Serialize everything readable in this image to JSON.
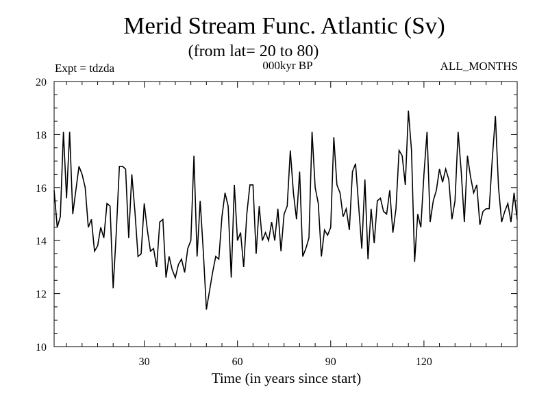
{
  "chart_data": {
    "type": "line",
    "title": "Merid Stream Func. Atlantic (Sv)",
    "subtitle": "(from lat= 20 to 80)",
    "header_left": "Expt = tdzda",
    "header_center": "000kyr BP",
    "header_right": "ALL_MONTHS",
    "xlabel": "Time (in years since start)",
    "ylabel": "",
    "xlim": [
      1,
      150
    ],
    "ylim": [
      10,
      20
    ],
    "xticks": [
      30,
      60,
      90,
      120
    ],
    "yticks": [
      10,
      12,
      14,
      16,
      18,
      20
    ],
    "grid": false,
    "series": [
      {
        "name": "Merid Stream Func. Atlantic",
        "color": "#000000",
        "x": [
          1,
          2,
          3,
          4,
          5,
          6,
          7,
          8,
          9,
          10,
          11,
          12,
          13,
          14,
          15,
          16,
          17,
          18,
          19,
          20,
          21,
          22,
          23,
          24,
          25,
          26,
          27,
          28,
          29,
          30,
          31,
          32,
          33,
          34,
          35,
          36,
          37,
          38,
          39,
          40,
          41,
          42,
          43,
          44,
          45,
          46,
          47,
          48,
          49,
          50,
          51,
          52,
          53,
          54,
          55,
          56,
          57,
          58,
          59,
          60,
          61,
          62,
          63,
          64,
          65,
          66,
          67,
          68,
          69,
          70,
          71,
          72,
          73,
          74,
          75,
          76,
          77,
          78,
          79,
          80,
          81,
          82,
          83,
          84,
          85,
          86,
          87,
          88,
          89,
          90,
          91,
          92,
          93,
          94,
          95,
          96,
          97,
          98,
          99,
          100,
          101,
          102,
          103,
          104,
          105,
          106,
          107,
          108,
          109,
          110,
          111,
          112,
          113,
          114,
          115,
          116,
          117,
          118,
          119,
          120,
          121,
          122,
          123,
          124,
          125,
          126,
          127,
          128,
          129,
          130,
          131,
          132,
          133,
          134,
          135,
          136,
          137,
          138,
          139,
          140,
          141,
          142,
          143,
          144,
          145,
          146,
          147,
          148,
          149,
          150
        ],
        "values": [
          15.9,
          14.5,
          14.9,
          18.1,
          15.6,
          18.1,
          15.0,
          15.9,
          16.8,
          16.5,
          16.0,
          14.5,
          14.8,
          13.6,
          13.8,
          14.5,
          14.1,
          15.4,
          15.3,
          12.2,
          14.3,
          16.8,
          16.8,
          16.7,
          14.1,
          16.5,
          15.1,
          13.4,
          13.5,
          15.4,
          14.4,
          13.6,
          13.7,
          13.0,
          14.7,
          14.8,
          12.6,
          13.4,
          12.9,
          12.6,
          13.1,
          13.3,
          12.8,
          13.7,
          14.0,
          17.2,
          13.4,
          15.5,
          13.6,
          11.4,
          12.1,
          12.8,
          13.4,
          13.3,
          14.9,
          15.8,
          15.3,
          12.6,
          16.1,
          14.0,
          14.3,
          13.0,
          15.0,
          16.1,
          16.1,
          13.5,
          15.3,
          14.0,
          14.3,
          14.0,
          14.7,
          14.0,
          15.2,
          13.6,
          15.0,
          15.3,
          17.4,
          15.8,
          14.8,
          16.6,
          13.4,
          13.7,
          14.1,
          18.1,
          16.0,
          15.4,
          13.4,
          14.4,
          14.2,
          14.5,
          17.9,
          16.1,
          15.8,
          14.9,
          15.2,
          14.4,
          16.6,
          16.9,
          15.3,
          13.7,
          16.3,
          13.3,
          15.2,
          13.9,
          15.5,
          15.6,
          15.1,
          15.0,
          15.9,
          14.3,
          15.2,
          17.4,
          17.2,
          16.1,
          18.9,
          17.4,
          13.2,
          15.0,
          14.5,
          16.5,
          18.1,
          14.7,
          15.5,
          15.9,
          16.7,
          16.2,
          16.7,
          16.3,
          14.8,
          15.5,
          18.1,
          16.6,
          14.7,
          17.2,
          16.4,
          15.8,
          16.1,
          14.6,
          15.1,
          15.2,
          15.2,
          17.1,
          18.7,
          16.0,
          14.7,
          15.1,
          15.4,
          14.7,
          15.8,
          14.8
        ]
      }
    ]
  }
}
